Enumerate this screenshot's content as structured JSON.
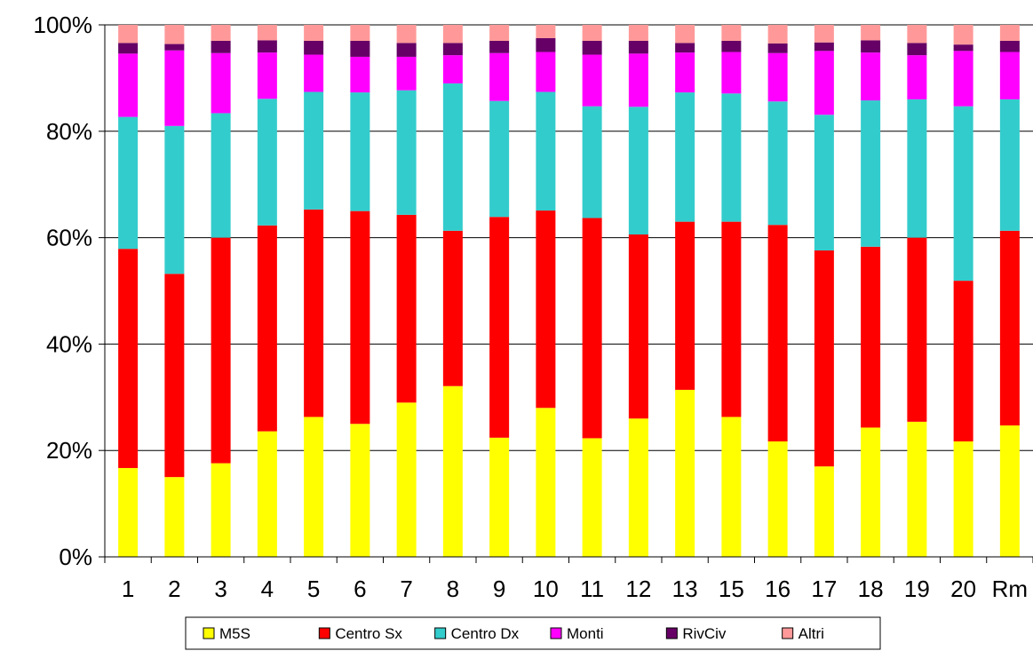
{
  "chart_data": {
    "type": "bar",
    "stacked": true,
    "percent": true,
    "title": "",
    "xlabel": "",
    "ylabel": "",
    "ylim": [
      0,
      100
    ],
    "y_ticks": [
      "0%",
      "20%",
      "40%",
      "60%",
      "80%",
      "100%"
    ],
    "grid": "horizontal",
    "legend": "bottom",
    "categories": [
      "1",
      "2",
      "3",
      "4",
      "5",
      "6",
      "7",
      "8",
      "9",
      "10",
      "11",
      "12",
      "13",
      "15",
      "16",
      "17",
      "18",
      "19",
      "20",
      "Rm"
    ],
    "series": [
      {
        "name": "M5S",
        "color": "#FFFF00",
        "values": [
          16.7,
          15.0,
          17.6,
          23.6,
          26.3,
          25.0,
          29.0,
          32.1,
          22.4,
          28.0,
          22.3,
          26.0,
          31.4,
          26.3,
          21.7,
          17.0,
          24.3,
          25.4,
          21.7,
          24.7
        ]
      },
      {
        "name": "Centro Sx",
        "color": "#FF0000",
        "values": [
          41.2,
          38.2,
          42.4,
          38.7,
          39.0,
          40.0,
          35.3,
          29.2,
          41.5,
          37.1,
          41.4,
          34.6,
          31.6,
          36.7,
          40.7,
          40.6,
          34.0,
          34.6,
          30.2,
          36.6
        ]
      },
      {
        "name": "Centro Dx",
        "color": "#33CCCC",
        "values": [
          24.8,
          27.8,
          23.4,
          23.8,
          22.1,
          22.3,
          23.4,
          27.7,
          21.8,
          22.3,
          21.0,
          24.0,
          24.3,
          24.1,
          23.2,
          25.5,
          27.5,
          26.0,
          32.8,
          24.7
        ]
      },
      {
        "name": "Monti",
        "color": "#FF00FF",
        "values": [
          11.9,
          14.2,
          11.3,
          8.7,
          7.0,
          6.7,
          6.3,
          5.3,
          9.0,
          7.5,
          9.7,
          10.0,
          7.5,
          7.8,
          9.1,
          12.0,
          9.0,
          8.3,
          10.4,
          8.9
        ]
      },
      {
        "name": "RivCiv",
        "color": "#660066",
        "values": [
          2.0,
          1.2,
          2.3,
          2.3,
          2.6,
          3.0,
          2.6,
          2.3,
          2.3,
          2.6,
          2.6,
          2.4,
          1.8,
          2.1,
          1.8,
          1.6,
          2.3,
          2.3,
          1.2,
          2.1
        ]
      },
      {
        "name": "Altri",
        "color": "#FF9999",
        "values": [
          3.4,
          3.6,
          3.0,
          2.9,
          3.0,
          3.0,
          3.4,
          3.4,
          3.0,
          2.5,
          3.0,
          3.0,
          3.4,
          3.0,
          3.5,
          3.3,
          2.9,
          3.4,
          3.7,
          3.0
        ]
      }
    ]
  }
}
